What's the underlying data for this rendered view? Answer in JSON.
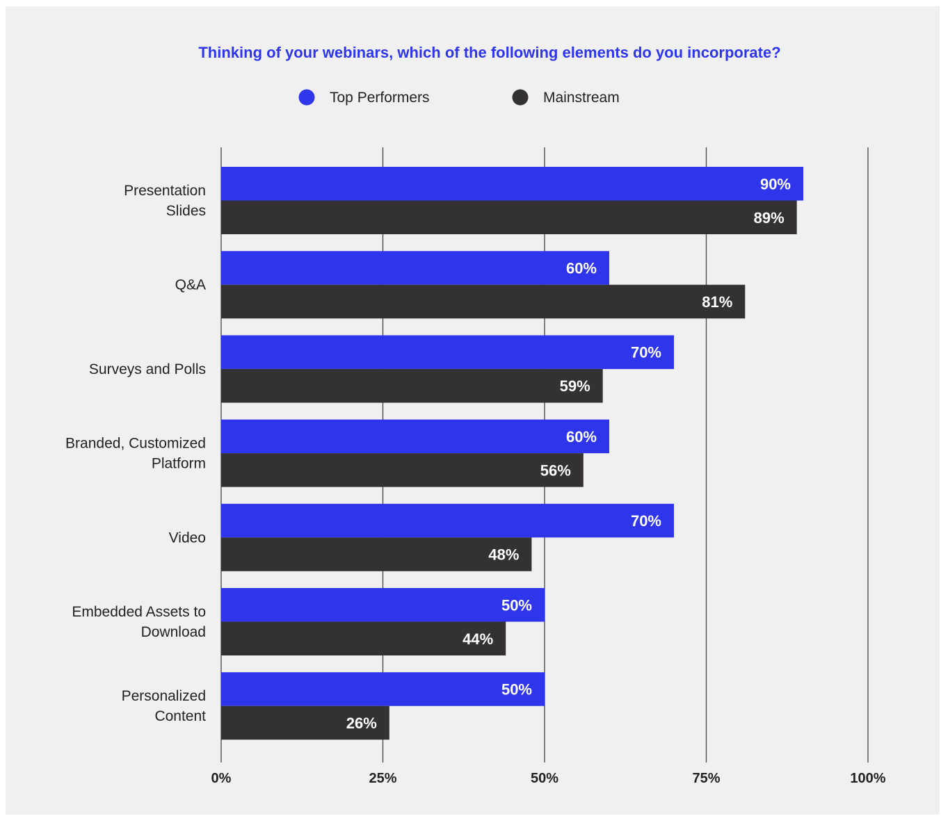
{
  "chart_data": {
    "type": "bar",
    "orientation": "horizontal",
    "title": "Thinking of your webinars, which of the following elements do you incorporate?",
    "categories": [
      [
        "Presentation",
        "Slides"
      ],
      [
        "Q&A"
      ],
      [
        "Surveys and Polls"
      ],
      [
        "Branded, Customized",
        "Platform"
      ],
      [
        "Video"
      ],
      [
        "Embedded Assets to",
        "Download"
      ],
      [
        "Personalized",
        "Content"
      ]
    ],
    "series": [
      {
        "name": "Top Performers",
        "color": "#2e35ea",
        "values": [
          90,
          60,
          70,
          60,
          70,
          50,
          50
        ]
      },
      {
        "name": "Mainstream",
        "color": "#333132",
        "values": [
          89,
          81,
          59,
          56,
          48,
          44,
          26
        ]
      }
    ],
    "xlim": [
      0,
      100
    ],
    "xticks": [
      0,
      25,
      50,
      75,
      100
    ],
    "tick_labels": [
      "0%",
      "25%",
      "50%",
      "75%",
      "100%"
    ],
    "value_suffix": "%",
    "legend_position": "top-center",
    "grid": "vertical",
    "title_color": "#2e35ea",
    "background": "#f0f0f0"
  }
}
